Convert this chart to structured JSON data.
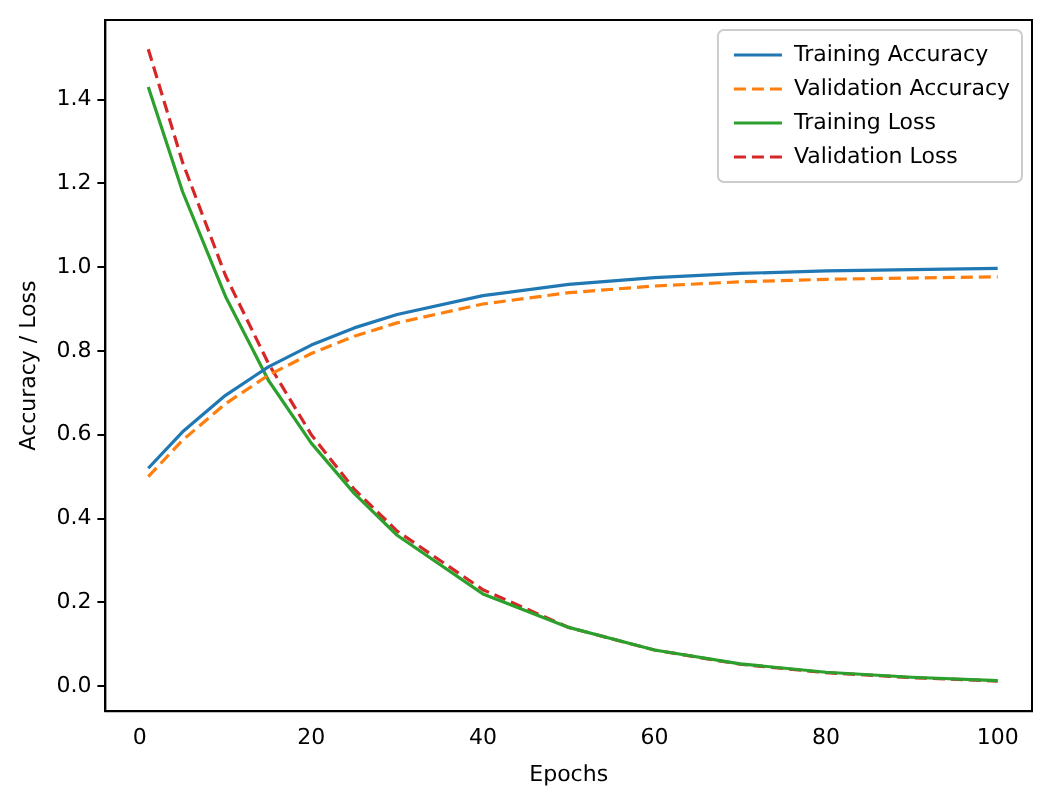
{
  "chart_data": {
    "type": "line",
    "xlabel": "Epochs",
    "ylabel": "Accuracy / Loss",
    "x": [
      1,
      5,
      10,
      15,
      20,
      25,
      30,
      40,
      50,
      60,
      70,
      80,
      90,
      100
    ],
    "series": [
      {
        "name": "Training Accuracy",
        "color": "#1f77b4",
        "line_style": "solid",
        "values": [
          0.52,
          0.607,
          0.694,
          0.762,
          0.814,
          0.855,
          0.887,
          0.932,
          0.959,
          0.975,
          0.985,
          0.991,
          0.994,
          0.997
        ]
      },
      {
        "name": "Validation Accuracy",
        "color": "#ff7f0e",
        "line_style": "dashed",
        "values": [
          0.5,
          0.587,
          0.674,
          0.742,
          0.794,
          0.835,
          0.867,
          0.912,
          0.939,
          0.955,
          0.965,
          0.971,
          0.974,
          0.977
        ]
      },
      {
        "name": "Training Loss",
        "color": "#2ca02c",
        "line_style": "solid",
        "values": [
          1.43,
          1.18,
          0.93,
          0.73,
          0.58,
          0.46,
          0.36,
          0.22,
          0.14,
          0.086,
          0.053,
          0.033,
          0.021,
          0.013
        ]
      },
      {
        "name": "Validation Loss",
        "color": "#d62728",
        "line_style": "dashed",
        "values": [
          1.52,
          1.25,
          0.98,
          0.77,
          0.6,
          0.47,
          0.37,
          0.23,
          0.14,
          0.086,
          0.052,
          0.032,
          0.02,
          0.012
        ]
      }
    ],
    "xlim": [
      -4,
      104
    ],
    "xticks": [
      0,
      20,
      40,
      60,
      80,
      100
    ],
    "ylim": [
      -0.06,
      1.59
    ],
    "yticks": [
      {
        "value": 0,
        "label": "0.0"
      },
      {
        "value": 0.2,
        "label": "0.2"
      },
      {
        "value": 0.4,
        "label": "0.4"
      },
      {
        "value": 0.6,
        "label": "0.6"
      },
      {
        "value": 0.8,
        "label": "0.8"
      },
      {
        "value": 1,
        "label": "1.0"
      },
      {
        "value": 1.2,
        "label": "1.2"
      },
      {
        "value": 1.4,
        "label": "1.4"
      }
    ],
    "grid": false,
    "legend": "top right",
    "marker": "none"
  }
}
